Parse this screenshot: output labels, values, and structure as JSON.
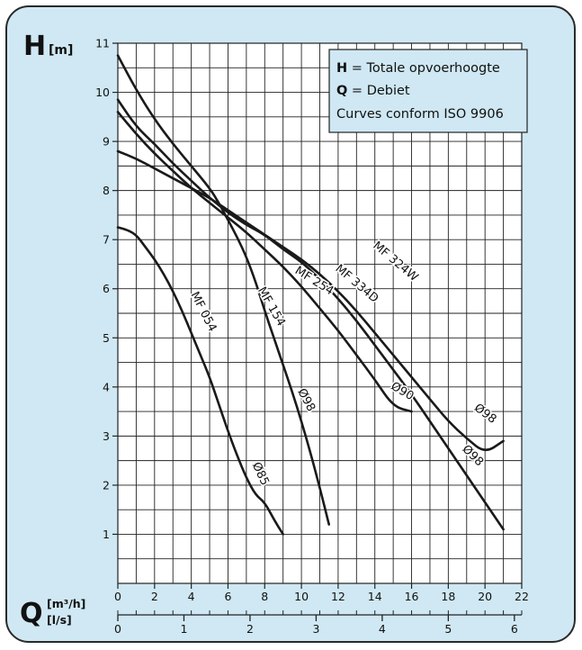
{
  "chart_data": {
    "type": "line",
    "title": "",
    "ylabel": "H",
    "ylabel_unit": "[m]",
    "xlabel": "Q",
    "xlabel_unit_top": "[m³/h]",
    "xlabel_unit_bottom": "[l/s]",
    "xlim": [
      0,
      22
    ],
    "ylim": [
      0,
      11
    ],
    "x_ticks": [
      "0",
      "2",
      "4",
      "6",
      "8",
      "10",
      "12",
      "14",
      "16",
      "18",
      "20",
      "22"
    ],
    "y_ticks": [
      "1",
      "2",
      "3",
      "4",
      "5",
      "6",
      "7",
      "8",
      "9",
      "10",
      "11"
    ],
    "secondary_x_ticks": [
      "0",
      "1",
      "2",
      "3",
      "4",
      "5",
      "6"
    ],
    "grid": true,
    "legend_lines": [
      {
        "key": "H",
        "text": " = Totale opvoerhoogte"
      },
      {
        "key": "Q",
        "text": " = Debiet"
      },
      {
        "key": "",
        "text": "Curves conform ISO 9906"
      }
    ],
    "series": [
      {
        "name": "MF 054",
        "impeller": "Ø85",
        "x": [
          0,
          0.5,
          1,
          1.5,
          2,
          2.5,
          3,
          3.5,
          4,
          4.5,
          5,
          5.5,
          6,
          6.5,
          7,
          7.5,
          8,
          8.5,
          9
        ],
        "y": [
          7.25,
          7.2,
          7.1,
          6.85,
          6.6,
          6.3,
          5.95,
          5.55,
          5.1,
          4.65,
          4.2,
          3.65,
          3.1,
          2.6,
          2.15,
          1.8,
          1.65,
          1.3,
          1.0
        ]
      },
      {
        "name": "MF 154",
        "impeller": "Ø98",
        "x": [
          0,
          1,
          2,
          3,
          4,
          5,
          5.5,
          6,
          6.5,
          7,
          7.5,
          8,
          8.5,
          9,
          9.5,
          10,
          10.5,
          11,
          11.5
        ],
        "y": [
          10.75,
          10.05,
          9.45,
          8.95,
          8.5,
          8.05,
          7.75,
          7.4,
          7.05,
          6.65,
          6.15,
          5.55,
          5.0,
          4.45,
          3.9,
          3.3,
          2.65,
          1.95,
          1.2
        ]
      },
      {
        "name": "MF 254",
        "impeller": "Ø90",
        "x": [
          0,
          1,
          2,
          3,
          4,
          5,
          6,
          7,
          8,
          9,
          10,
          11,
          12,
          13,
          14,
          15,
          16
        ],
        "y": [
          9.6,
          9.15,
          8.75,
          8.4,
          8.05,
          7.75,
          7.45,
          7.15,
          6.8,
          6.45,
          6.05,
          5.6,
          5.15,
          4.65,
          4.15,
          3.6,
          3.5
        ]
      },
      {
        "name": "MF 334D",
        "impeller": "Ø98",
        "x": [
          0,
          1,
          2,
          3,
          4,
          5,
          6,
          7,
          8,
          9,
          10,
          11,
          12,
          13,
          14,
          15,
          16,
          17,
          18,
          19,
          20,
          21
        ],
        "y": [
          9.85,
          9.3,
          8.95,
          8.55,
          8.2,
          7.85,
          7.55,
          7.3,
          7.1,
          6.8,
          6.55,
          6.2,
          5.8,
          5.35,
          4.85,
          4.35,
          3.85,
          3.3,
          2.75,
          2.2,
          1.65,
          1.1
        ]
      },
      {
        "name": "MF 324W",
        "impeller": "Ø98",
        "x": [
          0,
          1,
          2,
          3,
          4,
          5,
          6,
          7,
          8,
          9,
          10,
          11,
          12,
          13,
          14,
          15,
          16,
          17,
          18,
          19,
          20,
          21
        ],
        "y": [
          8.8,
          8.65,
          8.45,
          8.25,
          8.05,
          7.85,
          7.6,
          7.35,
          7.1,
          6.85,
          6.6,
          6.3,
          5.95,
          5.55,
          5.1,
          4.65,
          4.2,
          3.75,
          3.3,
          2.95,
          2.65,
          2.9
        ]
      }
    ],
    "curve_labels": [
      {
        "series": "MF 054",
        "text": "MF 054",
        "x": 4.5,
        "y": 5.5,
        "angle": 63
      },
      {
        "series": "MF 054",
        "text": "Ø85",
        "x": 7.6,
        "y": 2.2,
        "angle": 65
      },
      {
        "series": "MF 154",
        "text": "MF 154",
        "x": 8.2,
        "y": 5.6,
        "angle": 60
      },
      {
        "series": "MF 154",
        "text": "Ø98",
        "x": 10.1,
        "y": 3.7,
        "angle": 62
      },
      {
        "series": "MF 254",
        "text": "MF 254",
        "x": 10.6,
        "y": 6.1,
        "angle": 32
      },
      {
        "series": "MF 254",
        "text": "Ø90",
        "x": 15.4,
        "y": 3.85,
        "angle": 30
      },
      {
        "series": "MF 334D",
        "text": "MF 334D",
        "x": 12.9,
        "y": 6.05,
        "angle": 40
      },
      {
        "series": "MF 334D",
        "text": "Ø98",
        "x": 19.2,
        "y": 2.55,
        "angle": 45
      },
      {
        "series": "MF 324W",
        "text": "MF 324W",
        "x": 15.0,
        "y": 6.5,
        "angle": 40
      },
      {
        "series": "MF 324W",
        "text": "Ø98",
        "x": 19.9,
        "y": 3.4,
        "angle": 37
      }
    ]
  }
}
